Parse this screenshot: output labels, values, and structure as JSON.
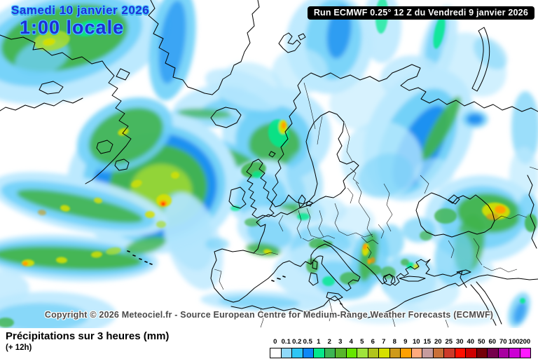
{
  "header": {
    "date_line1": "Samedi 10 janvier 2026",
    "time_line": "1:00 locale",
    "run_info": "Run ECMWF 0.25° 12 Z du Vendredi 9 janvier 2026"
  },
  "footer": {
    "copyright": "Copyright © 2026 Meteociel.fr - Source European Centre for Medium-Range Weather Forecasts (ECMWF)",
    "variable_title": "Précipitations sur 3 heures (mm)",
    "timestep": "(+ 12h)"
  },
  "legend": {
    "unit": "mm",
    "stops": [
      {
        "label": "0",
        "color": "#FFFFFF"
      },
      {
        "label": "0.1",
        "color": "#8FD9FA"
      },
      {
        "label": "0.2",
        "color": "#2EC6F5"
      },
      {
        "label": "0.5",
        "color": "#0D87F5"
      },
      {
        "label": "1",
        "color": "#04E88A"
      },
      {
        "label": "2",
        "color": "#3CB554"
      },
      {
        "label": "3",
        "color": "#58B52B"
      },
      {
        "label": "4",
        "color": "#66E600"
      },
      {
        "label": "5",
        "color": "#9FE43C"
      },
      {
        "label": "6",
        "color": "#B1C41C"
      },
      {
        "label": "7",
        "color": "#D6E000"
      },
      {
        "label": "8",
        "color": "#CE9A1A"
      },
      {
        "label": "9",
        "color": "#FFA002"
      },
      {
        "label": "10",
        "color": "#FFAA7D"
      },
      {
        "label": "15",
        "color": "#C69C9E"
      },
      {
        "label": "20",
        "color": "#C97038"
      },
      {
        "label": "25",
        "color": "#CC3A2A"
      },
      {
        "label": "30",
        "color": "#FF0F00"
      },
      {
        "label": "40",
        "color": "#CE0000"
      },
      {
        "label": "50",
        "color": "#750008"
      },
      {
        "label": "60",
        "color": "#75004C"
      },
      {
        "label": "70",
        "color": "#A800A0"
      },
      {
        "label": "100",
        "color": "#CC00D4"
      },
      {
        "label": "200",
        "color": "#FF1AFF"
      }
    ]
  },
  "map": {
    "background": "#FFFFFF",
    "coast_color": "#000000",
    "palette": {
      "LC": "#BCE9FE",
      "MC": "#6FD0F8",
      "BL": "#0E86F0",
      "SG": "#07E98C",
      "GR": "#41B44C",
      "YG": "#A8DC30",
      "YE": "#D8E000",
      "GO": "#CF9A16",
      "OR": "#FFA002",
      "RD": "#FF1A00"
    },
    "blobs": [
      [
        95,
        62,
        150,
        80,
        -15,
        "LC",
        1,
        "s"
      ],
      [
        88,
        58,
        118,
        60,
        -15,
        "MC",
        0.9,
        "s"
      ],
      [
        92,
        54,
        92,
        45,
        -12,
        "GR",
        0.95,
        "s"
      ],
      [
        60,
        82,
        40,
        24,
        -20,
        "MC",
        0.8,
        "s"
      ],
      [
        246,
        62,
        32,
        82,
        8,
        "MC",
        0.9,
        "s"
      ],
      [
        246,
        60,
        18,
        60,
        8,
        "BL",
        0.6,
        "s"
      ],
      [
        300,
        142,
        55,
        20,
        -18,
        "LC",
        0.9,
        "s"
      ],
      [
        318,
        152,
        32,
        11,
        -14,
        "MC",
        0.8,
        "s"
      ],
      [
        360,
        120,
        45,
        30,
        15,
        "LC",
        0.7,
        "s"
      ],
      [
        470,
        62,
        62,
        72,
        0,
        "LC",
        0.95,
        "s"
      ],
      [
        476,
        56,
        40,
        58,
        5,
        "MC",
        0.85,
        "s"
      ],
      [
        484,
        46,
        17,
        38,
        8,
        "BL",
        0.7,
        "s"
      ],
      [
        545,
        38,
        28,
        52,
        0,
        "LC",
        0.9,
        "s"
      ],
      [
        625,
        68,
        24,
        62,
        15,
        "LC",
        0.9,
        "s"
      ],
      [
        623,
        58,
        13,
        42,
        15,
        "MC",
        0.8,
        "s"
      ],
      [
        588,
        112,
        45,
        33,
        0,
        "LC",
        0.85,
        "s"
      ],
      [
        676,
        92,
        52,
        40,
        42,
        "LC",
        0.7,
        "s"
      ],
      [
        700,
        76,
        28,
        18,
        42,
        "MC",
        0.5,
        "s"
      ],
      [
        395,
        192,
        78,
        68,
        0,
        "LC",
        1,
        "s"
      ],
      [
        390,
        198,
        54,
        48,
        0,
        "MC",
        0.95,
        "s"
      ],
      [
        392,
        206,
        37,
        31,
        0,
        "GR",
        0.9,
        "s"
      ],
      [
        352,
        148,
        44,
        17,
        25,
        "MC",
        0.8,
        "s"
      ],
      [
        348,
        128,
        58,
        24,
        20,
        "LC",
        0.8,
        "s"
      ],
      [
        326,
        220,
        52,
        16,
        20,
        "MC",
        0.85,
        "s"
      ],
      [
        330,
        224,
        38,
        10,
        20,
        "GR",
        0.85,
        "s"
      ],
      [
        290,
        168,
        52,
        13,
        3,
        "MC",
        0.7,
        "s"
      ],
      [
        292,
        162,
        38,
        7,
        3,
        "GR",
        0.7,
        "s"
      ],
      [
        598,
        192,
        72,
        100,
        28,
        "LC",
        1,
        "s"
      ],
      [
        596,
        202,
        48,
        82,
        28,
        "MC",
        0.95,
        "s"
      ],
      [
        600,
        210,
        28,
        66,
        28,
        "BL",
        0.85,
        "s"
      ],
      [
        630,
        183,
        12,
        52,
        30,
        "GR",
        0.9,
        "s"
      ],
      [
        545,
        228,
        58,
        55,
        0,
        "LC",
        0.75,
        "s"
      ],
      [
        550,
        250,
        40,
        30,
        -20,
        "MC",
        0.5,
        "s"
      ],
      [
        678,
        170,
        19,
        13,
        0,
        "MC",
        0.8,
        "s"
      ],
      [
        678,
        170,
        12,
        8,
        0,
        "BL",
        0.85,
        "s"
      ],
      [
        378,
        276,
        58,
        48,
        0,
        "LC",
        0.95,
        "s"
      ],
      [
        372,
        280,
        38,
        33,
        0,
        "MC",
        0.75,
        "s"
      ],
      [
        420,
        300,
        44,
        20,
        5,
        "MC",
        0.7,
        "s"
      ],
      [
        421,
        301,
        24,
        11,
        5,
        "GR",
        0.85,
        "s"
      ],
      [
        390,
        328,
        52,
        33,
        10,
        "LC",
        0.9,
        "s"
      ],
      [
        385,
        333,
        33,
        20,
        15,
        "MC",
        0.7,
        "s"
      ],
      [
        376,
        356,
        25,
        9,
        8,
        "GR",
        0.9,
        "s"
      ],
      [
        458,
        358,
        44,
        38,
        0,
        "MC",
        0.65,
        "s"
      ],
      [
        468,
        388,
        78,
        42,
        0,
        "LC",
        0.85,
        "s"
      ],
      [
        488,
        400,
        44,
        26,
        15,
        "MC",
        0.7,
        "s"
      ],
      [
        528,
        368,
        26,
        42,
        12,
        "MC",
        0.85,
        "s"
      ],
      [
        526,
        366,
        12,
        36,
        12,
        "GR",
        0.9,
        "s"
      ],
      [
        583,
        398,
        40,
        35,
        0,
        "MC",
        0.7,
        "s"
      ],
      [
        604,
        414,
        52,
        32,
        0,
        "LC",
        0.7,
        "s"
      ],
      [
        558,
        344,
        19,
        24,
        0,
        "MC",
        0.7,
        "s"
      ],
      [
        675,
        385,
        30,
        20,
        0,
        "LC",
        0.7,
        "s"
      ],
      [
        672,
        382,
        18,
        13,
        0,
        "MC",
        0.7,
        "s"
      ],
      [
        664,
        392,
        9,
        11,
        0,
        "MC",
        0.6,
        "s"
      ],
      [
        688,
        312,
        82,
        62,
        0,
        "LC",
        0.95,
        "s"
      ],
      [
        688,
        310,
        62,
        45,
        0,
        "MC",
        0.85,
        "s"
      ],
      [
        698,
        304,
        46,
        28,
        5,
        "GR",
        0.95,
        "s"
      ],
      [
        670,
        348,
        21,
        42,
        10,
        "GR",
        0.8,
        "s"
      ],
      [
        648,
        368,
        28,
        40,
        5,
        "MC",
        0.7,
        "s"
      ],
      [
        218,
        260,
        122,
        102,
        0,
        "LC",
        1,
        "s"
      ],
      [
        220,
        262,
        102,
        85,
        0,
        "MC",
        0.95,
        "s"
      ],
      [
        222,
        264,
        88,
        75,
        0,
        "BL",
        0.85,
        "s"
      ],
      [
        226,
        266,
        70,
        60,
        0,
        "GR",
        0.95,
        "s"
      ],
      [
        230,
        272,
        44,
        38,
        0,
        "YG",
        0.8,
        "s"
      ],
      [
        178,
        192,
        72,
        48,
        -25,
        "MC",
        0.85,
        "s"
      ],
      [
        180,
        194,
        56,
        36,
        -25,
        "GR",
        0.9,
        "s"
      ],
      [
        268,
        330,
        33,
        58,
        -20,
        "MC",
        0.7,
        "s"
      ],
      [
        276,
        344,
        38,
        72,
        -18,
        "LC",
        0.8,
        "s"
      ],
      [
        98,
        368,
        128,
        33,
        3,
        "LC",
        1,
        "s"
      ],
      [
        98,
        368,
        118,
        25,
        3,
        "MC",
        0.95,
        "s"
      ],
      [
        97,
        368,
        106,
        16,
        3,
        "GR",
        0.95,
        "s"
      ],
      [
        208,
        350,
        30,
        11,
        -15,
        "GR",
        0.8,
        "s"
      ],
      [
        113,
        291,
        128,
        38,
        12,
        "LC",
        0.95,
        "s"
      ],
      [
        111,
        293,
        112,
        27,
        12,
        "MC",
        0.9,
        "s"
      ],
      [
        114,
        294,
        92,
        15,
        12,
        "GR",
        0.9,
        "s"
      ],
      [
        68,
        448,
        98,
        32,
        0,
        "LC",
        0.9,
        "s"
      ],
      [
        58,
        452,
        68,
        20,
        0,
        "MC",
        0.7,
        "s"
      ],
      [
        0,
        412,
        42,
        26,
        0,
        "LC",
        0.8,
        "s"
      ],
      [
        378,
        430,
        92,
        15,
        2,
        "LC",
        0.9,
        "s"
      ],
      [
        370,
        431,
        58,
        9,
        2,
        "MC",
        0.7,
        "s"
      ],
      [
        545,
        446,
        58,
        16,
        0,
        "LC",
        0.5,
        "s"
      ],
      [
        672,
        448,
        40,
        16,
        0,
        "LC",
        0.5,
        "s"
      ],
      [
        741,
        442,
        14,
        26,
        20,
        "MC",
        0.8,
        "s"
      ],
      [
        742,
        446,
        8,
        16,
        20,
        "BL",
        0.6,
        "s"
      ],
      [
        750,
        182,
        20,
        52,
        0,
        "MC",
        0.7,
        "s"
      ],
      [
        748,
        252,
        21,
        42,
        0,
        "LC",
        0.7,
        "s"
      ],
      [
        754,
        302,
        15,
        26,
        0,
        "MC",
        0.7,
        "s"
      ],
      [
        428,
        102,
        40,
        33,
        0,
        "LC",
        0.7,
        "s"
      ],
      [
        518,
        148,
        48,
        38,
        0,
        "LC",
        0.6,
        "s"
      ],
      [
        598,
        328,
        24,
        18,
        0,
        "MC",
        0.7,
        "s"
      ],
      [
        310,
        348,
        17,
        9,
        0,
        "MC",
        0.6,
        "s"
      ],
      [
        620,
        248,
        28,
        22,
        0,
        "LC",
        0.6,
        "s"
      ],
      [
        435,
        255,
        25,
        40,
        -15,
        "MC",
        0.5,
        "s"
      ],
      [
        460,
        300,
        35,
        20,
        0,
        "LC",
        0.7,
        "s"
      ],
      [
        505,
        315,
        30,
        22,
        0,
        "LC",
        0.6,
        "s"
      ],
      [
        480,
        345,
        30,
        15,
        -10,
        "MC",
        0.6,
        "s"
      ],
      [
        74,
        58,
        26,
        14,
        -10,
        "YG",
        0.85,
        "c"
      ],
      [
        70,
        60,
        9,
        5,
        -10,
        "YE",
        0.9,
        "c"
      ],
      [
        128,
        40,
        22,
        11,
        -15,
        "SG",
        0.8,
        "c"
      ],
      [
        627,
        46,
        7,
        24,
        12,
        "SG",
        0.85,
        "c"
      ],
      [
        545,
        22,
        9,
        26,
        3,
        "SG",
        0.7,
        "c"
      ],
      [
        398,
        190,
        15,
        20,
        -10,
        "SG",
        0.85,
        "c"
      ],
      [
        404,
        181,
        6,
        10,
        0,
        "YE",
        0.95,
        "c"
      ],
      [
        405,
        179,
        3.2,
        5,
        0,
        "OR",
        1,
        "c"
      ],
      [
        362,
        242,
        18,
        11,
        -10,
        "GR",
        0.9,
        "c"
      ],
      [
        367,
        249,
        7,
        5,
        0,
        "SG",
        0.8,
        "c"
      ],
      [
        433,
        309,
        9,
        5,
        0,
        "SG",
        0.8,
        "c"
      ],
      [
        382,
        359,
        6,
        3.5,
        8,
        "YE",
        0.9,
        "c"
      ],
      [
        360,
        317,
        11,
        6,
        0,
        "GR",
        0.7,
        "c"
      ],
      [
        452,
        347,
        11,
        7,
        -10,
        "GR",
        0.8,
        "c"
      ],
      [
        446,
        379,
        9,
        11,
        0,
        "GR",
        0.8,
        "c"
      ],
      [
        469,
        401,
        9,
        7,
        0,
        "SG",
        0.8,
        "c"
      ],
      [
        499,
        397,
        14,
        9,
        0,
        "GR",
        0.8,
        "c"
      ],
      [
        522,
        356,
        5,
        9,
        8,
        "YE",
        0.95,
        "c"
      ],
      [
        521,
        352,
        3,
        4.5,
        8,
        "OR",
        1,
        "c"
      ],
      [
        532,
        371,
        3.5,
        4.5,
        0,
        "GO",
        0.9,
        "c"
      ],
      [
        527,
        373,
        2.6,
        4,
        0,
        "OR",
        0.95,
        "c"
      ],
      [
        536,
        385,
        8,
        7,
        0,
        "GR",
        0.8,
        "c"
      ],
      [
        554,
        389,
        11,
        9,
        0,
        "GR",
        0.7,
        "c"
      ],
      [
        586,
        379,
        6,
        5,
        0,
        "SG",
        0.9,
        "c"
      ],
      [
        594,
        380,
        4,
        3.5,
        0,
        "YE",
        0.85,
        "c"
      ],
      [
        578,
        374,
        6,
        5,
        0,
        "GR",
        0.8,
        "c"
      ],
      [
        608,
        336,
        9,
        7,
        0,
        "GR",
        0.7,
        "c"
      ],
      [
        636,
        308,
        16,
        11,
        0,
        "GR",
        0.8,
        "c"
      ],
      [
        708,
        301,
        20,
        12,
        5,
        "YE",
        0.9,
        "c"
      ],
      [
        714,
        299,
        8,
        6,
        5,
        "OR",
        1,
        "c"
      ],
      [
        703,
        309,
        9,
        5,
        0,
        "GO",
        0.8,
        "c"
      ],
      [
        234,
        286,
        11,
        9,
        0,
        "YE",
        0.9,
        "c"
      ],
      [
        233,
        290,
        5.5,
        4.5,
        0,
        "OR",
        1,
        "c"
      ],
      [
        233,
        291,
        2.4,
        2.4,
        0,
        "RD",
        1,
        "c"
      ],
      [
        214,
        306,
        7,
        5,
        0,
        "YE",
        0.85,
        "c"
      ],
      [
        250,
        250,
        6,
        5,
        0,
        "YE",
        0.75,
        "c"
      ],
      [
        176,
        188,
        8,
        5,
        -20,
        "YE",
        0.85,
        "c"
      ],
      [
        40,
        375,
        9,
        5,
        0,
        "YE",
        0.9,
        "c"
      ],
      [
        36,
        376,
        4,
        3.2,
        0,
        "OR",
        1,
        "c"
      ],
      [
        88,
        371,
        8,
        4.5,
        3,
        "YE",
        0.85,
        "c"
      ],
      [
        138,
        363,
        8,
        4.5,
        -5,
        "YE",
        0.8,
        "c"
      ],
      [
        162,
        358,
        11,
        5,
        -10,
        "YG",
        0.8,
        "c"
      ],
      [
        93,
        297,
        7,
        4.5,
        10,
        "YE",
        0.85,
        "c"
      ],
      [
        140,
        286,
        6,
        4,
        10,
        "YE",
        0.8,
        "c"
      ],
      [
        60,
        303,
        6,
        4,
        8,
        "GO",
        0.6,
        "c"
      ],
      [
        758,
        318,
        9,
        13,
        0,
        "GR",
        0.85,
        "c"
      ],
      [
        336,
        297,
        7,
        4,
        0,
        "SG",
        0.7,
        "c"
      ],
      [
        463,
        349,
        12,
        5,
        -12,
        "GR",
        0.75,
        "c"
      ],
      [
        8,
        460,
        12,
        7,
        0,
        "GR",
        0.8,
        "c"
      ],
      [
        195,
        262,
        8,
        5,
        -20,
        "YE",
        0.7,
        "c"
      ],
      [
        230,
        320,
        7,
        5,
        0,
        "YG",
        0.7,
        "c"
      ],
      [
        746,
        429,
        4,
        4,
        0,
        "SG",
        0.85,
        "c"
      ]
    ]
  }
}
